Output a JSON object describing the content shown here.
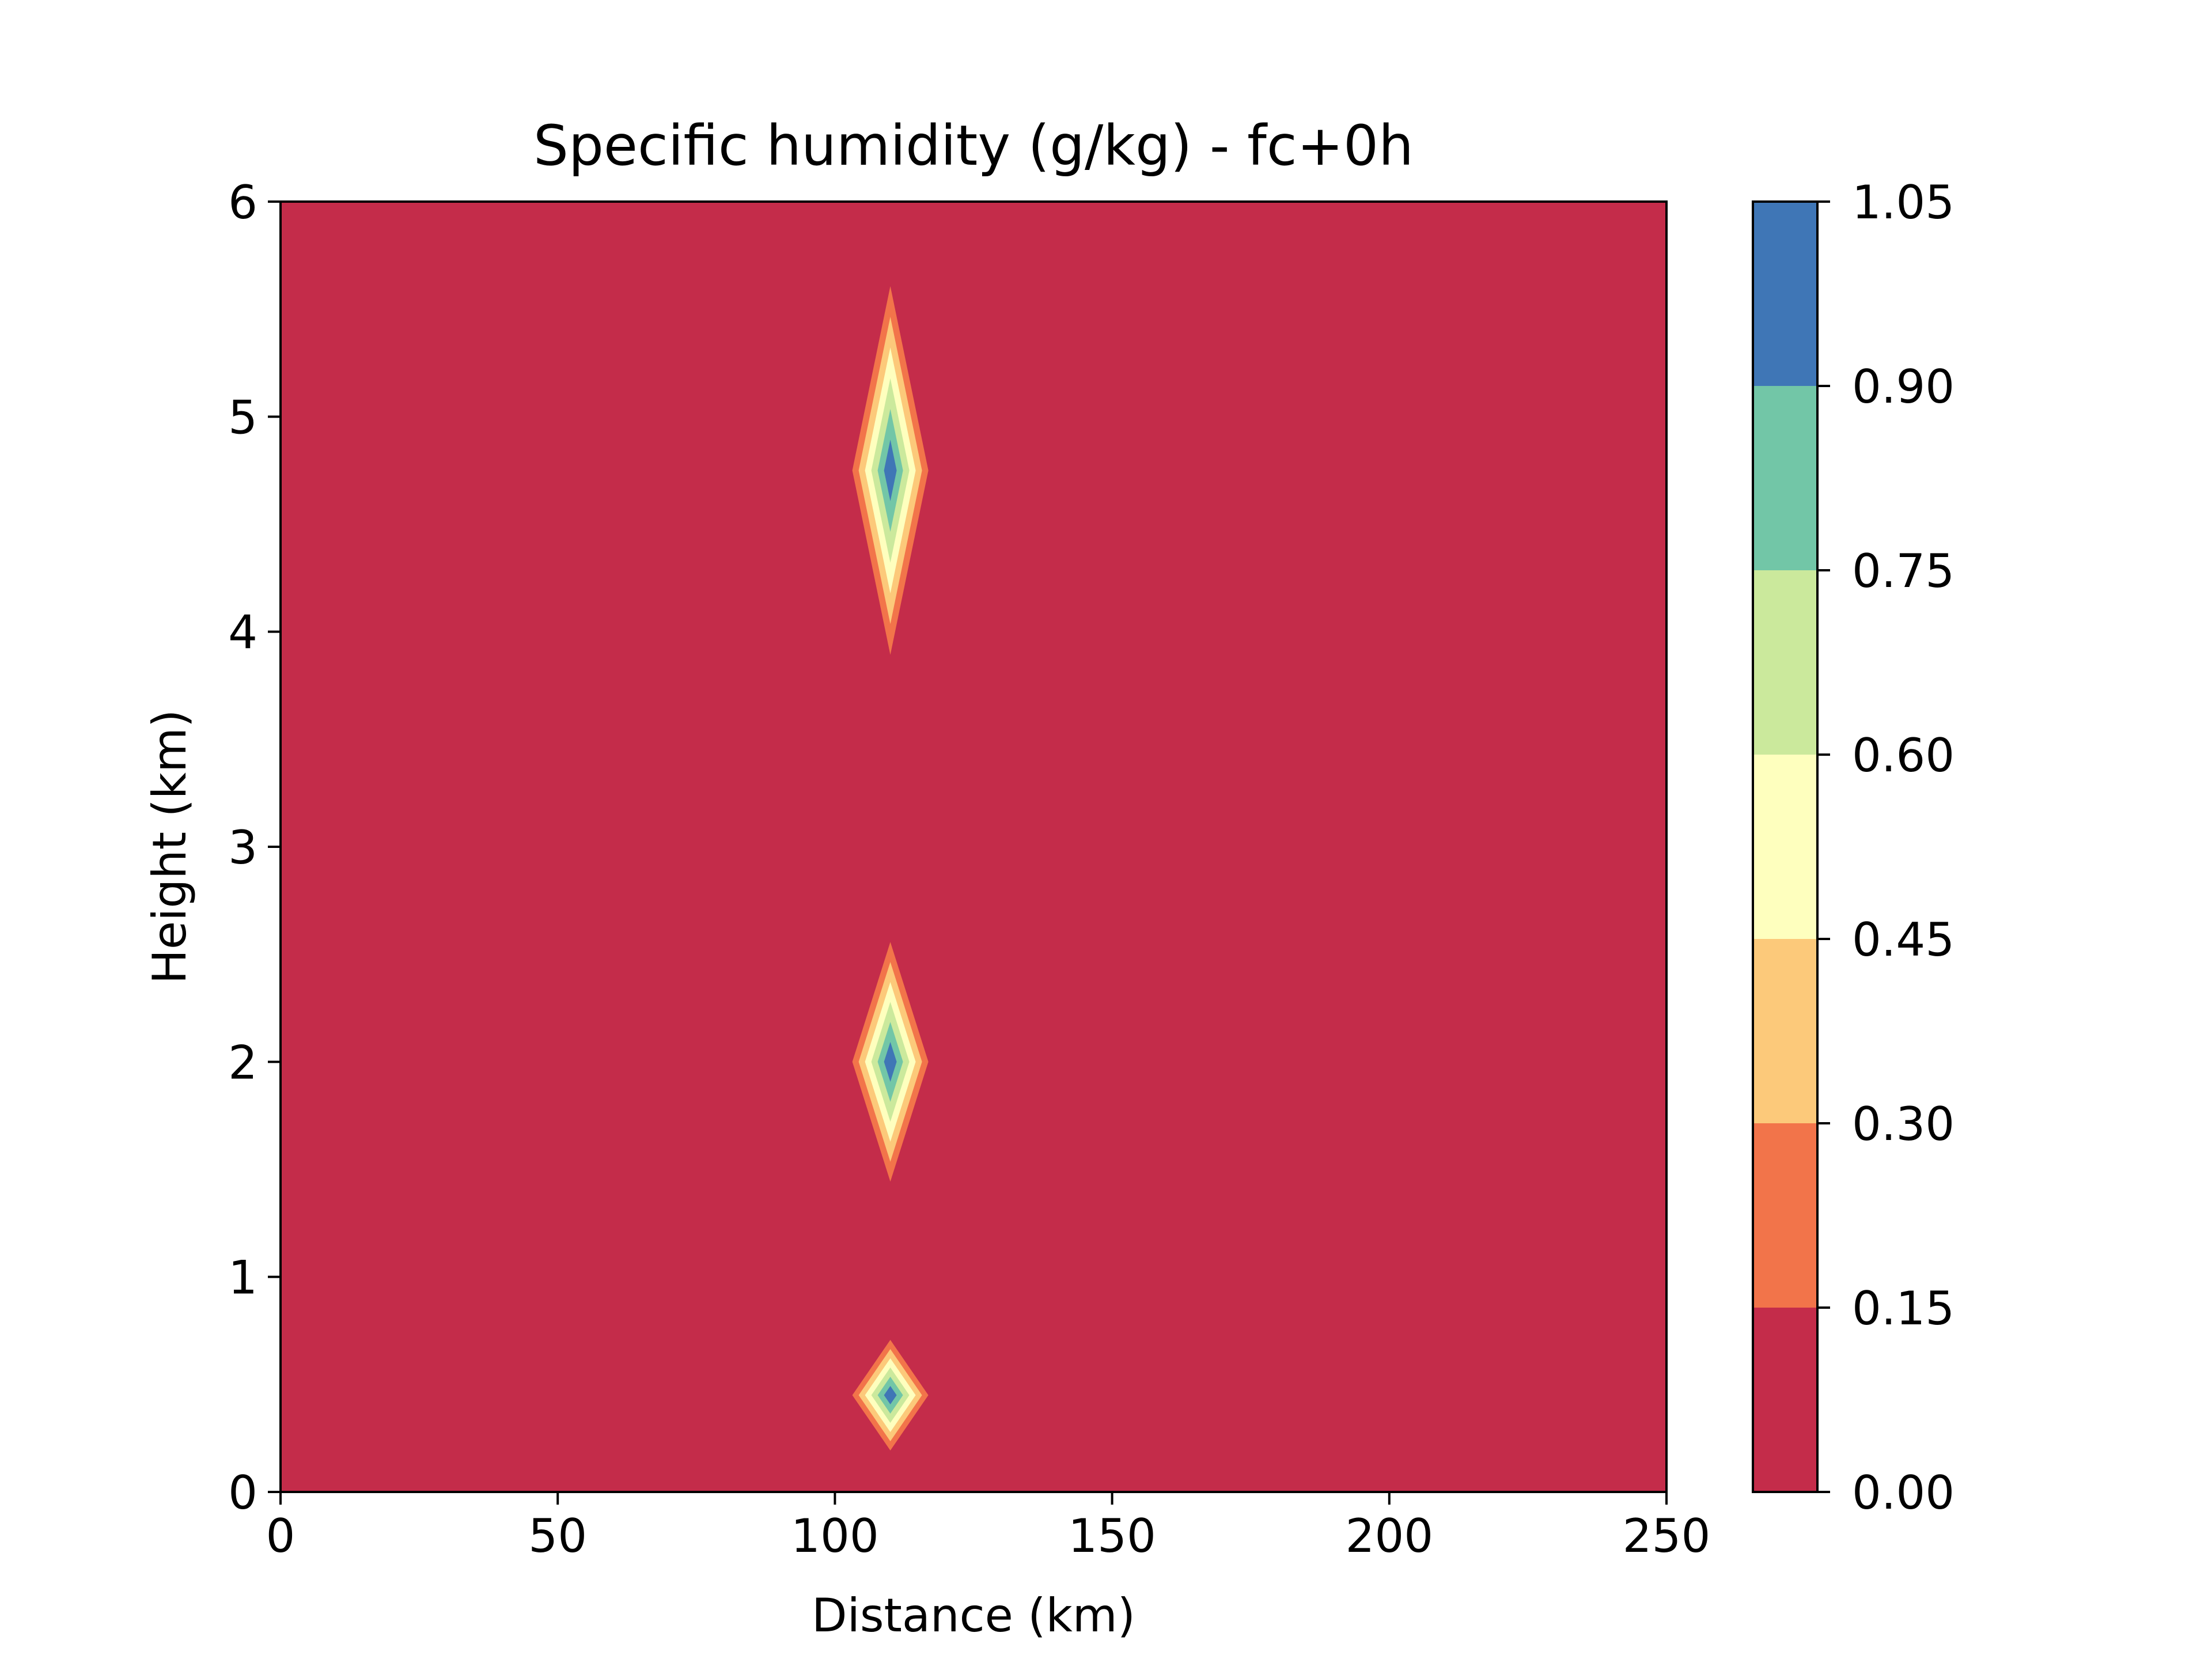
{
  "chart_data": {
    "type": "contourf",
    "title": "Specific humidity (g/kg) - fc+0h",
    "xlabel": "Distance (km)",
    "ylabel": "Height (km)",
    "xlim": [
      0,
      250
    ],
    "ylim": [
      0,
      6
    ],
    "x_ticks": [
      0,
      50,
      100,
      150,
      200,
      250
    ],
    "x_tick_labels": [
      "0",
      "50",
      "100",
      "150",
      "200",
      "250"
    ],
    "y_ticks": [
      0,
      1,
      2,
      3,
      4,
      5,
      6
    ],
    "y_tick_labels": [
      "0",
      "1",
      "2",
      "3",
      "4",
      "5",
      "6"
    ],
    "colorbar": {
      "levels": [
        0.0,
        0.15,
        0.3,
        0.45,
        0.6,
        0.75,
        0.9,
        1.05
      ],
      "tick_labels": [
        "0.00",
        "0.15",
        "0.30",
        "0.45",
        "0.60",
        "0.75",
        "0.90",
        "1.05"
      ],
      "colors": [
        "#c42c4a",
        "#f2744a",
        "#fcc97a",
        "#feffbe",
        "#cbe99c",
        "#72c6a7",
        "#3f76b6"
      ],
      "colormap": "Spectral"
    },
    "background_value_range": [
      0.0,
      0.15
    ],
    "features": [
      {
        "name": "upper moisture peak",
        "x_center": 110,
        "y_center": 4.75,
        "x_half_width": 8,
        "y_half_height": 1.0,
        "peak_value": 1.05
      },
      {
        "name": "middle moisture peak",
        "x_center": 110,
        "y_center": 2.0,
        "x_half_width": 8,
        "y_half_height": 0.65,
        "peak_value": 1.05
      },
      {
        "name": "lower moisture peak",
        "x_center": 110,
        "y_center": 0.45,
        "x_half_width": 8,
        "y_half_height": 0.3,
        "peak_value": 1.05
      }
    ],
    "grid": false
  }
}
